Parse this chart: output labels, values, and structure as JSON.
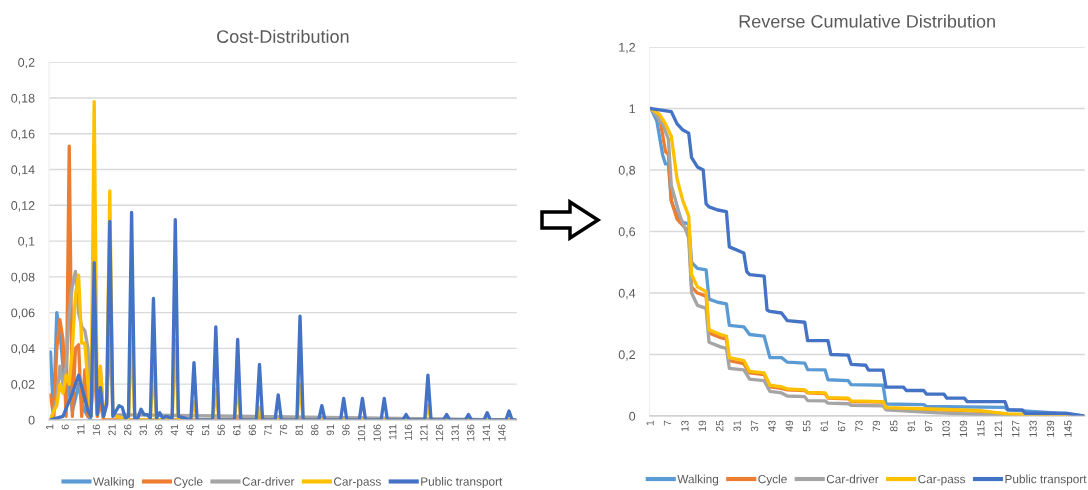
{
  "chart_data": [
    {
      "type": "line",
      "title": "Cost-Distribution",
      "grid": "y",
      "legend": "bottom",
      "marker": "none",
      "line_style": "solid",
      "xlim": [
        0.5,
        150.5
      ],
      "xticks": [
        1,
        6,
        11,
        16,
        21,
        26,
        31,
        36,
        41,
        46,
        51,
        56,
        61,
        66,
        71,
        76,
        81,
        86,
        91,
        96,
        101,
        106,
        111,
        116,
        121,
        126,
        131,
        136,
        141,
        146
      ],
      "ylim": [
        0,
        0.2
      ],
      "yticks": [
        {
          "value": 0,
          "label": "0"
        },
        {
          "value": 0.02,
          "label": "0,02"
        },
        {
          "value": 0.04,
          "label": "0,04"
        },
        {
          "value": 0.06,
          "label": "0,06"
        },
        {
          "value": 0.08,
          "label": "0,08"
        },
        {
          "value": 0.1,
          "label": "0,1"
        },
        {
          "value": 0.12,
          "label": "0,12"
        },
        {
          "value": 0.14,
          "label": "0,14"
        },
        {
          "value": 0.16,
          "label": "0,16"
        },
        {
          "value": 0.18,
          "label": "0,18"
        },
        {
          "value": 0.2,
          "label": "0,2"
        }
      ],
      "series": [
        {
          "name": "Walking",
          "color": "#5b9bd5",
          "x": [
            1,
            2,
            3,
            4,
            5,
            6,
            7,
            8,
            9,
            10,
            11,
            12,
            13,
            14
          ],
          "values": [
            0.038,
            0.002,
            0.06,
            0.05,
            0.03,
            0.01,
            0.02,
            0.005,
            0.012,
            0.02,
            0.01,
            0.005,
            0.002,
            0
          ]
        },
        {
          "name": "Cycle",
          "color": "#ed7d31",
          "x": [
            1,
            2,
            3,
            4,
            5,
            6,
            7,
            8,
            9,
            10,
            11,
            12,
            13,
            14,
            15,
            16,
            17,
            18,
            150
          ],
          "values": [
            0.014,
            0.002,
            0.04,
            0.056,
            0.045,
            0.002,
            0.153,
            0.002,
            0.04,
            0.042,
            0.002,
            0.028,
            0.002,
            0.005,
            0.03,
            0.002,
            0.01,
            0,
            0
          ]
        },
        {
          "name": "Car-driver",
          "color": "#a5a5a5",
          "x": [
            1,
            2,
            3,
            4,
            5,
            6,
            7,
            8,
            9,
            10,
            11,
            12,
            13,
            14,
            15,
            16,
            17,
            18,
            19,
            20,
            21,
            150
          ],
          "values": [
            0,
            0.005,
            0.012,
            0.03,
            0.02,
            0.03,
            0.06,
            0.075,
            0.083,
            0.06,
            0.052,
            0.05,
            0.04,
            0.005,
            0.04,
            0.005,
            0.028,
            0.002,
            0.008,
            0.05,
            0.003,
            0
          ]
        },
        {
          "name": "Car-pass",
          "color": "#ffc000",
          "x": [
            1,
            2,
            3,
            4,
            5,
            6,
            7,
            8,
            9,
            10,
            11,
            12,
            13,
            14,
            15,
            16,
            17,
            18,
            19,
            20,
            21,
            22,
            26,
            27,
            28,
            33,
            34,
            35,
            40,
            41,
            42,
            46,
            47,
            48,
            53,
            54,
            55,
            60,
            61,
            62,
            67,
            68,
            69,
            80,
            81,
            82,
            121,
            122,
            123,
            150
          ],
          "values": [
            0,
            0.005,
            0.008,
            0.02,
            0.015,
            0.025,
            0.02,
            0.04,
            0.07,
            0.081,
            0.043,
            0.043,
            0.02,
            0.002,
            0.178,
            0.003,
            0.03,
            0.002,
            0.01,
            0.128,
            0.003,
            0.002,
            0,
            0.05,
            0,
            0,
            0.03,
            0,
            0,
            0.045,
            0,
            0,
            0.01,
            0,
            0,
            0.017,
            0,
            0,
            0.02,
            0,
            0,
            0.007,
            0,
            0,
            0.02,
            0,
            0,
            0.008,
            0,
            0
          ]
        },
        {
          "name": "Public transport",
          "color": "#4472c4",
          "x": [
            1,
            5,
            8,
            10,
            12,
            13,
            14,
            15,
            16,
            17,
            18,
            19,
            20,
            21,
            22,
            23,
            24,
            25,
            26,
            27,
            28,
            29,
            30,
            31,
            32,
            33,
            34,
            35,
            36,
            37,
            38,
            40,
            41,
            42,
            46,
            47,
            48,
            53,
            54,
            55,
            60,
            61,
            62,
            67,
            68,
            69,
            73,
            74,
            75,
            80,
            81,
            82,
            87,
            88,
            89,
            94,
            95,
            96,
            100,
            101,
            102,
            107,
            108,
            109,
            114,
            115,
            116,
            121,
            122,
            123,
            127,
            128,
            129,
            134,
            135,
            136,
            140,
            141,
            142,
            147,
            148,
            149,
            150
          ],
          "values": [
            0,
            0.002,
            0.015,
            0.025,
            0.012,
            0.005,
            0.002,
            0.088,
            0.003,
            0.018,
            0.002,
            0.009,
            0.111,
            0.002,
            0.005,
            0.008,
            0.007,
            0.001,
            0.002,
            0.116,
            0.001,
            0.001,
            0.006,
            0.003,
            0.003,
            0.001,
            0.068,
            0.001,
            0.004,
            0.001,
            0.002,
            0.001,
            0.112,
            0.002,
            0,
            0.032,
            0,
            0,
            0.052,
            0,
            0,
            0.045,
            0,
            0,
            0.031,
            0,
            0,
            0.014,
            0,
            0,
            0.058,
            0,
            0,
            0.008,
            0,
            0,
            0.012,
            0,
            0,
            0.012,
            0,
            0,
            0.012,
            0,
            0,
            0.003,
            0,
            0,
            0.025,
            0,
            0,
            0.003,
            0,
            0,
            0.003,
            0,
            0,
            0.004,
            0,
            0,
            0.005,
            0,
            0
          ]
        }
      ]
    },
    {
      "type": "line",
      "title": "Reverse Cumulative Distribution",
      "grid": "y",
      "legend": "bottom",
      "marker": "none",
      "line_style": "solid",
      "xlim": [
        0.5,
        150.5
      ],
      "xticks": [
        1,
        7,
        13,
        19,
        25,
        31,
        37,
        43,
        49,
        55,
        61,
        67,
        73,
        79,
        85,
        91,
        97,
        103,
        109,
        115,
        121,
        127,
        133,
        139,
        145
      ],
      "ylim": [
        0,
        1.2
      ],
      "yticks": [
        {
          "value": 0,
          "label": "0"
        },
        {
          "value": 0.2,
          "label": "0,2"
        },
        {
          "value": 0.4,
          "label": "0,4"
        },
        {
          "value": 0.6,
          "label": "0,6"
        },
        {
          "value": 0.8,
          "label": "0,8"
        },
        {
          "value": 1,
          "label": "1"
        },
        {
          "value": 1.2,
          "label": "1,2"
        }
      ],
      "series": [
        {
          "name": "Walking",
          "color": "#5b9bd5",
          "x": [
            1,
            3,
            5,
            6,
            7,
            8,
            10,
            12,
            14,
            15,
            17,
            20,
            21,
            24,
            27,
            28,
            33,
            35,
            40,
            42,
            46,
            48,
            54,
            55,
            61,
            62,
            69,
            70,
            81,
            82,
            95,
            96,
            123,
            124,
            140,
            150
          ],
          "values": [
            1,
            0.96,
            0.85,
            0.82,
            0.82,
            0.7,
            0.65,
            0.63,
            0.625,
            0.5,
            0.48,
            0.475,
            0.38,
            0.37,
            0.365,
            0.295,
            0.29,
            0.265,
            0.26,
            0.19,
            0.19,
            0.175,
            0.172,
            0.151,
            0.15,
            0.118,
            0.115,
            0.102,
            0.1,
            0.039,
            0.037,
            0.031,
            0.028,
            0.02,
            0.01,
            0
          ]
        },
        {
          "name": "Cycle",
          "color": "#ed7d31",
          "x": [
            1,
            4,
            6,
            7,
            8,
            10,
            11,
            14,
            15,
            17,
            20,
            21,
            25,
            27,
            28,
            33,
            35,
            40,
            42,
            46,
            48,
            54,
            55,
            61,
            62,
            69,
            70,
            81,
            82,
            100,
            115,
            124,
            150
          ],
          "values": [
            1,
            0.97,
            0.86,
            0.85,
            0.7,
            0.64,
            0.63,
            0.6,
            0.42,
            0.4,
            0.39,
            0.27,
            0.255,
            0.25,
            0.18,
            0.17,
            0.14,
            0.135,
            0.095,
            0.09,
            0.085,
            0.083,
            0.075,
            0.073,
            0.058,
            0.056,
            0.047,
            0.045,
            0.025,
            0.02,
            0.015,
            0.005,
            0
          ]
        },
        {
          "name": "Car-driver",
          "color": "#a5a5a5",
          "x": [
            1,
            5,
            7,
            8,
            11,
            14,
            15,
            17,
            20,
            21,
            25,
            27,
            28,
            33,
            35,
            40,
            42,
            46,
            48,
            54,
            55,
            61,
            62,
            69,
            70,
            81,
            82,
            100,
            130,
            150
          ],
          "values": [
            1,
            0.95,
            0.9,
            0.75,
            0.65,
            0.58,
            0.4,
            0.36,
            0.35,
            0.24,
            0.225,
            0.22,
            0.155,
            0.15,
            0.12,
            0.115,
            0.08,
            0.075,
            0.065,
            0.063,
            0.05,
            0.049,
            0.042,
            0.04,
            0.035,
            0.033,
            0.02,
            0.01,
            0,
            0
          ]
        },
        {
          "name": "Car-pass",
          "color": "#ffc000",
          "x": [
            1,
            4,
            6,
            8,
            10,
            12,
            14,
            15,
            16,
            17,
            20,
            21,
            25,
            27,
            28,
            33,
            35,
            40,
            42,
            46,
            48,
            54,
            55,
            61,
            62,
            69,
            70,
            81,
            82,
            100,
            115,
            124,
            150
          ],
          "values": [
            1,
            0.98,
            0.95,
            0.91,
            0.77,
            0.7,
            0.65,
            0.46,
            0.44,
            0.42,
            0.405,
            0.28,
            0.265,
            0.26,
            0.19,
            0.18,
            0.145,
            0.14,
            0.1,
            0.095,
            0.088,
            0.085,
            0.077,
            0.075,
            0.06,
            0.058,
            0.049,
            0.047,
            0.027,
            0.022,
            0.017,
            0.007,
            0
          ]
        },
        {
          "name": "Public transport",
          "color": "#4472c4",
          "x": [
            1,
            8,
            10,
            12,
            14,
            15,
            17,
            19,
            20,
            21,
            24,
            27,
            28,
            33,
            34,
            35,
            40,
            41,
            42,
            46,
            48,
            54,
            55,
            62,
            63,
            69,
            70,
            75,
            76,
            81,
            82,
            88,
            89,
            95,
            96,
            102,
            103,
            109,
            110,
            123,
            124,
            129,
            130,
            144,
            150
          ],
          "values": [
            1,
            0.99,
            0.95,
            0.93,
            0.92,
            0.84,
            0.81,
            0.8,
            0.69,
            0.68,
            0.67,
            0.665,
            0.55,
            0.53,
            0.47,
            0.46,
            0.455,
            0.345,
            0.34,
            0.335,
            0.31,
            0.305,
            0.245,
            0.245,
            0.2,
            0.198,
            0.168,
            0.165,
            0.149,
            0.149,
            0.094,
            0.094,
            0.083,
            0.083,
            0.071,
            0.071,
            0.058,
            0.058,
            0.047,
            0.047,
            0.02,
            0.02,
            0.009,
            0.009,
            0
          ]
        }
      ]
    }
  ]
}
